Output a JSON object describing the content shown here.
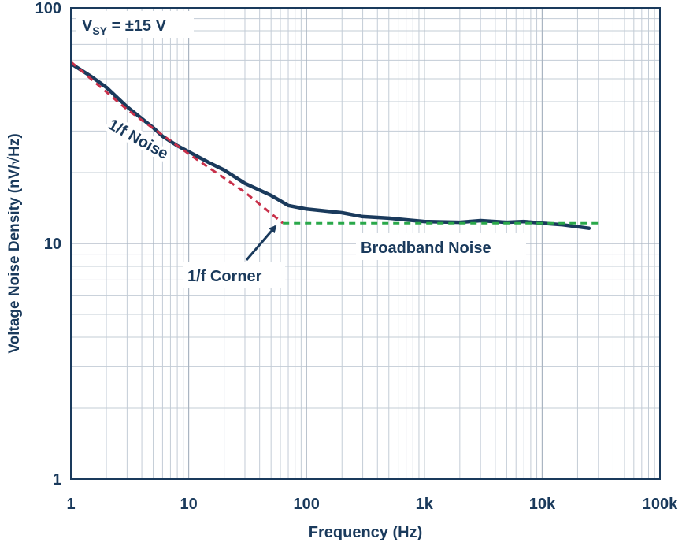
{
  "chart_data": {
    "type": "line",
    "title": "",
    "xlabel": "Frequency (Hz)",
    "ylabel": "Voltage Noise Density (nV/√Hz)",
    "xscale": "log",
    "yscale": "log",
    "xlim": [
      1,
      100000
    ],
    "ylim": [
      1,
      100
    ],
    "grid": true,
    "x_ticks": [
      {
        "value": 1,
        "label": "1"
      },
      {
        "value": 10,
        "label": "10"
      },
      {
        "value": 100,
        "label": "100"
      },
      {
        "value": 1000,
        "label": "1k"
      },
      {
        "value": 10000,
        "label": "10k"
      },
      {
        "value": 100000,
        "label": "100k"
      }
    ],
    "y_ticks": [
      {
        "value": 1,
        "label": "1"
      },
      {
        "value": 10,
        "label": "10"
      },
      {
        "value": 100,
        "label": "100"
      }
    ],
    "series": [
      {
        "name": "",
        "color": "#1a3a5c",
        "style": "solid",
        "x": [
          1,
          1.5,
          2,
          3,
          5,
          6,
          8,
          10,
          15,
          20,
          30,
          50,
          70,
          100,
          200,
          300,
          500,
          700,
          1000,
          2000,
          3000,
          5000,
          7000,
          10000,
          15000,
          25000
        ],
        "y": [
          58,
          51,
          46,
          38,
          31,
          28.5,
          26,
          24.5,
          22,
          20.5,
          18,
          16,
          14.5,
          14,
          13.5,
          13,
          12.8,
          12.6,
          12.4,
          12.3,
          12.5,
          12.3,
          12.4,
          12.2,
          12,
          11.6
        ]
      },
      {
        "name": "",
        "color": "#c8304a",
        "style": "dashed",
        "x": [
          1,
          3,
          10,
          30,
          63
        ],
        "y": [
          59,
          37,
          24,
          16.5,
          12.2
        ]
      },
      {
        "name": "",
        "color": "#2aa84a",
        "style": "dashed",
        "x": [
          63,
          30000
        ],
        "y": [
          12.2,
          12.2
        ]
      }
    ],
    "annotations": {
      "supply": {
        "main": "V",
        "sub": "SY",
        "rest": " = ±15 V"
      },
      "one_over_f_noise": "1/f Noise",
      "corner": "1/f Corner",
      "broadband": "Broadband Noise"
    }
  }
}
